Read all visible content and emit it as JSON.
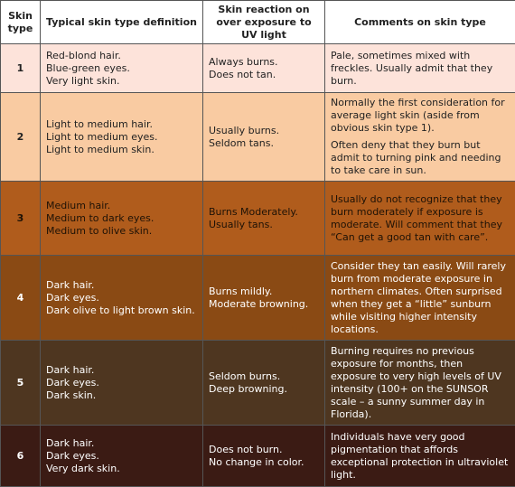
{
  "table": {
    "header": [
      "Skin type",
      "Typical skin type definition",
      "Skin reaction on over exposure to UV light",
      "Comments on skin type"
    ],
    "rows": [
      {
        "type": "1",
        "definition": [
          "Red-blond hair.",
          "Blue-green eyes.",
          "Very light skin."
        ],
        "reaction": [
          "Always burns.",
          "Does not tan."
        ],
        "comments": [
          "Pale, sometimes mixed with freckles. Usually admit that they burn."
        ]
      },
      {
        "type": "2",
        "definition": [
          "Light to medium hair.",
          "Light to medium eyes.",
          "Light to medium skin."
        ],
        "reaction": [
          "Usually burns.",
          "Seldom tans."
        ],
        "comments": [
          "Normally the first consideration for average light skin (aside from obvious skin type 1).",
          "Often deny that they burn but admit to turning pink and needing to take care in sun."
        ]
      },
      {
        "type": "3",
        "definition": [
          "Medium hair.",
          "Medium to dark eyes.",
          "Medium to olive skin."
        ],
        "reaction": [
          "Burns Moderately.",
          "Usually tans."
        ],
        "comments": [
          "Usually do not recognize that they burn moderately if exposure is moderate. Will comment that they “Can get a good tan with care”."
        ]
      },
      {
        "type": "4",
        "definition": [
          "Dark hair.",
          "Dark eyes.",
          "Dark olive to light brown skin."
        ],
        "reaction": [
          "Burns mildly.",
          "Moderate browning."
        ],
        "comments": [
          "Consider they tan easily. Will rarely burn from moderate exposure in northern climates. Often surprised when they get a “little” sunburn while visiting higher intensity locations."
        ]
      },
      {
        "type": "5",
        "definition": [
          "Dark hair.",
          "Dark eyes.",
          "Dark skin."
        ],
        "reaction": [
          "Seldom burns.",
          "Deep browning."
        ],
        "comments": [
          "Burning requires no previous exposure for months, then exposure to very high levels of UV intensity (100+ on the SUNSOR scale – a sunny summer day in Florida)."
        ]
      },
      {
        "type": "6",
        "definition": [
          "Dark hair.",
          "Dark eyes.",
          "Very dark skin."
        ],
        "reaction": [
          "Does not burn.",
          "No change in color."
        ],
        "comments": [
          "Individuals have very good pigmentation that affords exceptional protection in ultraviolet light."
        ]
      }
    ]
  }
}
